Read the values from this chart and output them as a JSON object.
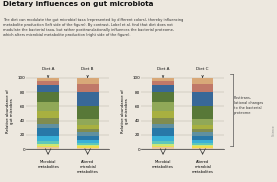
{
  "title": "Dietary influences on gut microbiota",
  "subtitle": "The diet can modulate the gut microbial taxa (represented by different colors), thereby influencing\nmetabolite production (left side of the figure). By contrast, Lobel et al. find that diet does not\nmodulate the bacterial taxa, but rather posttranslationally influences the bacterial proteome,\nwhich alters microbial metabolite production (right side of the figure).",
  "background_color": "#ede8df",
  "bar_width": 0.55,
  "left_panel": {
    "diet_labels": [
      "Diet A",
      "Diet B"
    ],
    "x_labels": [
      "Microbial\nmetabolites",
      "Altered\nmicrobial\nmetabolites"
    ],
    "ylabel": "Relative abundance of\ngut microbes",
    "yticks": [
      0,
      20,
      40,
      60,
      80,
      100
    ]
  },
  "right_panel": {
    "diet_labels": [
      "Diet A",
      "Diet C"
    ],
    "x_labels": [
      "Microbial\nmetabolites",
      "Altered\nmicrobial\nmetabolites"
    ],
    "ylabel": "Relative abundance of\ngut microbes",
    "yticks": [
      0,
      20,
      40,
      60,
      80,
      100
    ],
    "annotation": "Posttrans-\nlational changes\nto the bacterial\nproteome"
  },
  "seg_colors": [
    "#e8c8a0",
    "#f0dc50",
    "#c8e878",
    "#60c8b8",
    "#38b0d8",
    "#2878a8",
    "#6090a0",
    "#808c50",
    "#a8b040",
    "#90a858",
    "#587838",
    "#386898",
    "#c07868",
    "#d8a878"
  ],
  "bar_heights": [
    [
      3,
      2,
      2,
      5,
      6,
      12,
      6,
      8,
      10,
      12,
      14,
      10,
      6,
      4
    ],
    [
      2,
      2,
      2,
      3,
      4,
      6,
      5,
      4,
      6,
      8,
      18,
      20,
      12,
      8
    ],
    [
      3,
      2,
      2,
      5,
      6,
      12,
      6,
      8,
      10,
      12,
      14,
      10,
      6,
      4
    ],
    [
      2,
      2,
      2,
      3,
      4,
      6,
      5,
      4,
      6,
      8,
      18,
      20,
      12,
      8
    ]
  ]
}
